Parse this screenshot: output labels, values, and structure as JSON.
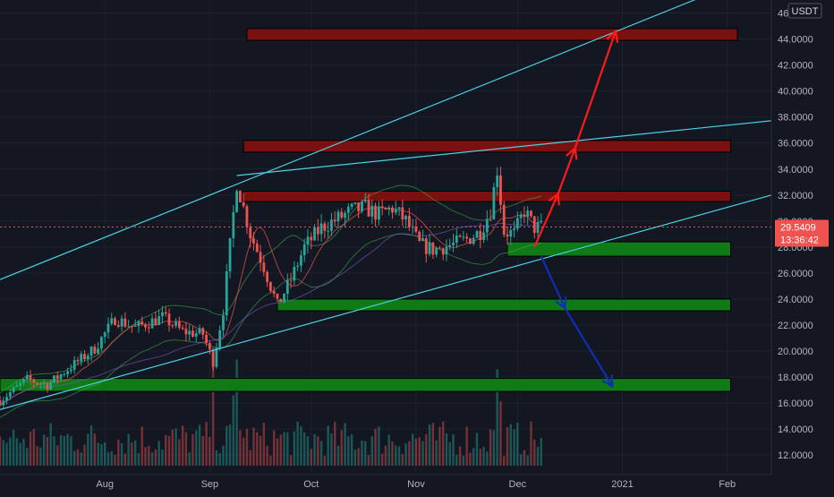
{
  "chart_data": {
    "type": "candlestick",
    "quote_currency": "USDT",
    "price_axis": {
      "min": 10.5,
      "max": 47.0,
      "ticks": [
        "12.0000",
        "14.0000",
        "16.0000",
        "18.0000",
        "20.0000",
        "22.0000",
        "24.0000",
        "26.0000",
        "28.0000",
        "30.0000",
        "32.0000",
        "34.0000",
        "36.0000",
        "38.0000",
        "40.0000",
        "42.0000",
        "44.0000",
        "46.0000"
      ],
      "grid": true
    },
    "time_axis": {
      "labels": [
        {
          "text": "Aug",
          "day": 31
        },
        {
          "text": "Sep",
          "day": 62
        },
        {
          "text": "Oct",
          "day": 92
        },
        {
          "text": "Nov",
          "day": 123
        },
        {
          "text": "Dec",
          "day": 153
        },
        {
          "text": "2021",
          "day": 184
        },
        {
          "text": "Feb",
          "day": 215
        }
      ]
    },
    "current_price": {
      "value": 29.5409,
      "label": "29.5409",
      "countdown": "13:36:42",
      "color": "#ef5350"
    },
    "candles_per_day": 1,
    "day_range": [
      0,
      160
    ],
    "anchor_closes": [
      [
        0,
        16.2
      ],
      [
        8,
        17.8
      ],
      [
        14,
        17.4
      ],
      [
        20,
        18.6
      ],
      [
        28,
        20.2
      ],
      [
        34,
        22.5
      ],
      [
        40,
        21.8
      ],
      [
        48,
        22.6
      ],
      [
        54,
        21.5
      ],
      [
        60,
        21.3
      ],
      [
        63,
        19.2
      ],
      [
        66,
        23.2
      ],
      [
        70,
        33.0
      ],
      [
        74,
        29.0
      ],
      [
        78,
        26.5
      ],
      [
        82,
        23.5
      ],
      [
        86,
        25.5
      ],
      [
        90,
        28.0
      ],
      [
        95,
        29.5
      ],
      [
        100,
        30.2
      ],
      [
        104,
        30.8
      ],
      [
        108,
        31.0
      ],
      [
        112,
        30.5
      ],
      [
        116,
        31.0
      ],
      [
        120,
        30.0
      ],
      [
        124,
        28.2
      ],
      [
        128,
        27.8
      ],
      [
        134,
        28.2
      ],
      [
        138,
        28.6
      ],
      [
        142,
        29.2
      ],
      [
        145,
        30.8
      ],
      [
        147,
        34.0
      ],
      [
        149,
        29.2
      ],
      [
        152,
        29.0
      ],
      [
        155,
        30.8
      ],
      [
        158,
        29.5
      ],
      [
        160,
        29.5
      ]
    ],
    "volume_spikes": [
      {
        "day": 63,
        "scale": 0.8
      },
      {
        "day": 70,
        "scale": 1.7
      },
      {
        "day": 147,
        "scale": 1.3
      }
    ],
    "resistance_zones": [
      {
        "from": 43.9,
        "to": 44.8,
        "x_start_day": 73,
        "x_end_day": 218
      },
      {
        "from": 35.3,
        "to": 36.2,
        "x_start_day": 72,
        "x_end_day": 216
      },
      {
        "from": 31.5,
        "to": 32.3,
        "x_start_day": 72,
        "x_end_day": 216
      }
    ],
    "support_zones": [
      {
        "from": 27.3,
        "to": 28.4,
        "x_start_day": 150,
        "x_end_day": 216
      },
      {
        "from": 23.1,
        "to": 24.0,
        "x_start_day": 82,
        "x_end_day": 216
      },
      {
        "from": 16.9,
        "to": 17.9,
        "x_start_day": 0,
        "x_end_day": 216
      }
    ],
    "trendlines": [
      {
        "from": {
          "day": 0,
          "value": 25.5
        },
        "to": {
          "day": 210,
          "value": 47.5
        }
      },
      {
        "from": {
          "day": 70,
          "value": 33.5
        },
        "to": {
          "day": 235,
          "value": 37.9
        }
      },
      {
        "from": {
          "day": 0,
          "value": 15.5
        },
        "to": {
          "day": 235,
          "value": 32.5
        }
      }
    ],
    "projection_arrows": {
      "up": {
        "color": "#ff1a1a",
        "points": [
          {
            "day": 158,
            "value": 28.0
          },
          {
            "day": 165,
            "value": 32.1
          },
          {
            "day": 170,
            "value": 35.6
          },
          {
            "day": 182,
            "value": 44.6
          }
        ]
      },
      "down": {
        "color": "#0d2fb8",
        "points": [
          {
            "day": 160,
            "value": 27.3
          },
          {
            "day": 167,
            "value": 23.3
          },
          {
            "day": 181,
            "value": 17.3
          }
        ]
      }
    },
    "colors": {
      "background": "#131722",
      "grid": "#1e222d",
      "up_candle": "#26a69a",
      "down_candle": "#ef5350",
      "resistance_fill": "#7a1111",
      "support_fill": "#0f7a16",
      "trendline": "#4dd0e1",
      "axis_text": "#b2b5be"
    }
  }
}
